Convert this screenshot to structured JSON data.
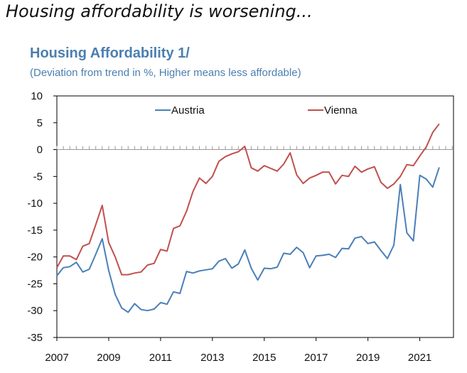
{
  "headline": "Housing affordability is worsening...",
  "chart_data": {
    "type": "line",
    "title": "Housing Affordability 1/",
    "subtitle": "(Deviation from trend in %, Higher means less affordable)",
    "xlabel": "",
    "ylabel": "",
    "ylim": [
      -35,
      10
    ],
    "yticks": [
      10,
      5,
      0,
      -5,
      -10,
      -15,
      -20,
      -25,
      -30,
      -35
    ],
    "xlim": [
      2007,
      2022.3
    ],
    "xticks": [
      2007,
      2009,
      2011,
      2013,
      2015,
      2017,
      2019,
      2021
    ],
    "legend": "top",
    "grid": false,
    "zero_line": "dotted",
    "series": [
      {
        "name": "Austria",
        "color": "#4a7fb8",
        "x": [
          2007.0,
          2007.25,
          2007.5,
          2007.75,
          2008.0,
          2008.25,
          2008.5,
          2008.75,
          2009.0,
          2009.25,
          2009.5,
          2009.75,
          2010.0,
          2010.25,
          2010.5,
          2010.75,
          2011.0,
          2011.25,
          2011.5,
          2011.75,
          2012.0,
          2012.25,
          2012.5,
          2012.75,
          2013.0,
          2013.25,
          2013.5,
          2013.75,
          2014.0,
          2014.25,
          2014.5,
          2014.75,
          2015.0,
          2015.25,
          2015.5,
          2015.75,
          2016.0,
          2016.25,
          2016.5,
          2016.75,
          2017.0,
          2017.25,
          2017.5,
          2017.75,
          2018.0,
          2018.25,
          2018.5,
          2018.75,
          2019.0,
          2019.25,
          2019.5,
          2019.75,
          2020.0,
          2020.25,
          2020.5,
          2020.75,
          2021.0,
          2021.25,
          2021.5,
          2021.75
        ],
        "values": [
          -23.5,
          -22.0,
          -21.8,
          -21.0,
          -22.8,
          -22.3,
          -19.5,
          -16.6,
          -22.5,
          -27.0,
          -29.5,
          -30.3,
          -28.7,
          -29.8,
          -30.0,
          -29.7,
          -28.5,
          -28.8,
          -26.5,
          -26.8,
          -22.7,
          -23.0,
          -22.6,
          -22.4,
          -22.2,
          -20.8,
          -20.3,
          -22.1,
          -21.3,
          -18.7,
          -22.1,
          -24.3,
          -22.1,
          -22.2,
          -21.9,
          -19.3,
          -19.5,
          -18.2,
          -19.2,
          -22.0,
          -19.8,
          -19.7,
          -19.5,
          -20.1,
          -18.4,
          -18.5,
          -16.5,
          -16.2,
          -17.5,
          -17.2,
          -18.8,
          -20.3,
          -17.8,
          -6.5,
          -15.5,
          -17.0,
          -4.8,
          -5.5,
          -7.0,
          -3.3
        ]
      },
      {
        "name": "Vienna",
        "color": "#c0504d",
        "x": [
          2007.0,
          2007.25,
          2007.5,
          2007.75,
          2008.0,
          2008.25,
          2008.5,
          2008.75,
          2009.0,
          2009.25,
          2009.5,
          2009.75,
          2010.0,
          2010.25,
          2010.5,
          2010.75,
          2011.0,
          2011.25,
          2011.5,
          2011.75,
          2012.0,
          2012.25,
          2012.5,
          2012.75,
          2013.0,
          2013.25,
          2013.5,
          2013.75,
          2014.0,
          2014.25,
          2014.5,
          2014.75,
          2015.0,
          2015.25,
          2015.5,
          2015.75,
          2016.0,
          2016.25,
          2016.5,
          2016.75,
          2017.0,
          2017.25,
          2017.5,
          2017.75,
          2018.0,
          2018.25,
          2018.5,
          2018.75,
          2019.0,
          2019.25,
          2019.5,
          2019.75,
          2020.0,
          2020.25,
          2020.5,
          2020.75,
          2021.0,
          2021.25,
          2021.5,
          2021.75
        ],
        "values": [
          -22.0,
          -19.8,
          -19.8,
          -20.5,
          -18.0,
          -17.5,
          -14.0,
          -10.4,
          -17.3,
          -20.0,
          -23.3,
          -23.3,
          -23.0,
          -22.8,
          -21.5,
          -21.2,
          -18.6,
          -18.9,
          -14.7,
          -14.2,
          -11.5,
          -7.8,
          -5.3,
          -6.3,
          -5.0,
          -2.2,
          -1.3,
          -0.8,
          -0.4,
          0.6,
          -3.4,
          -4.0,
          -3.0,
          -3.5,
          -4.0,
          -2.7,
          -0.6,
          -4.7,
          -6.3,
          -5.3,
          -4.8,
          -4.2,
          -4.2,
          -6.4,
          -4.8,
          -5.0,
          -3.1,
          -4.2,
          -3.6,
          -3.2,
          -6.1,
          -7.2,
          -6.4,
          -5.0,
          -2.8,
          -3.0,
          -1.2,
          0.5,
          3.2,
          4.8
        ]
      }
    ]
  }
}
